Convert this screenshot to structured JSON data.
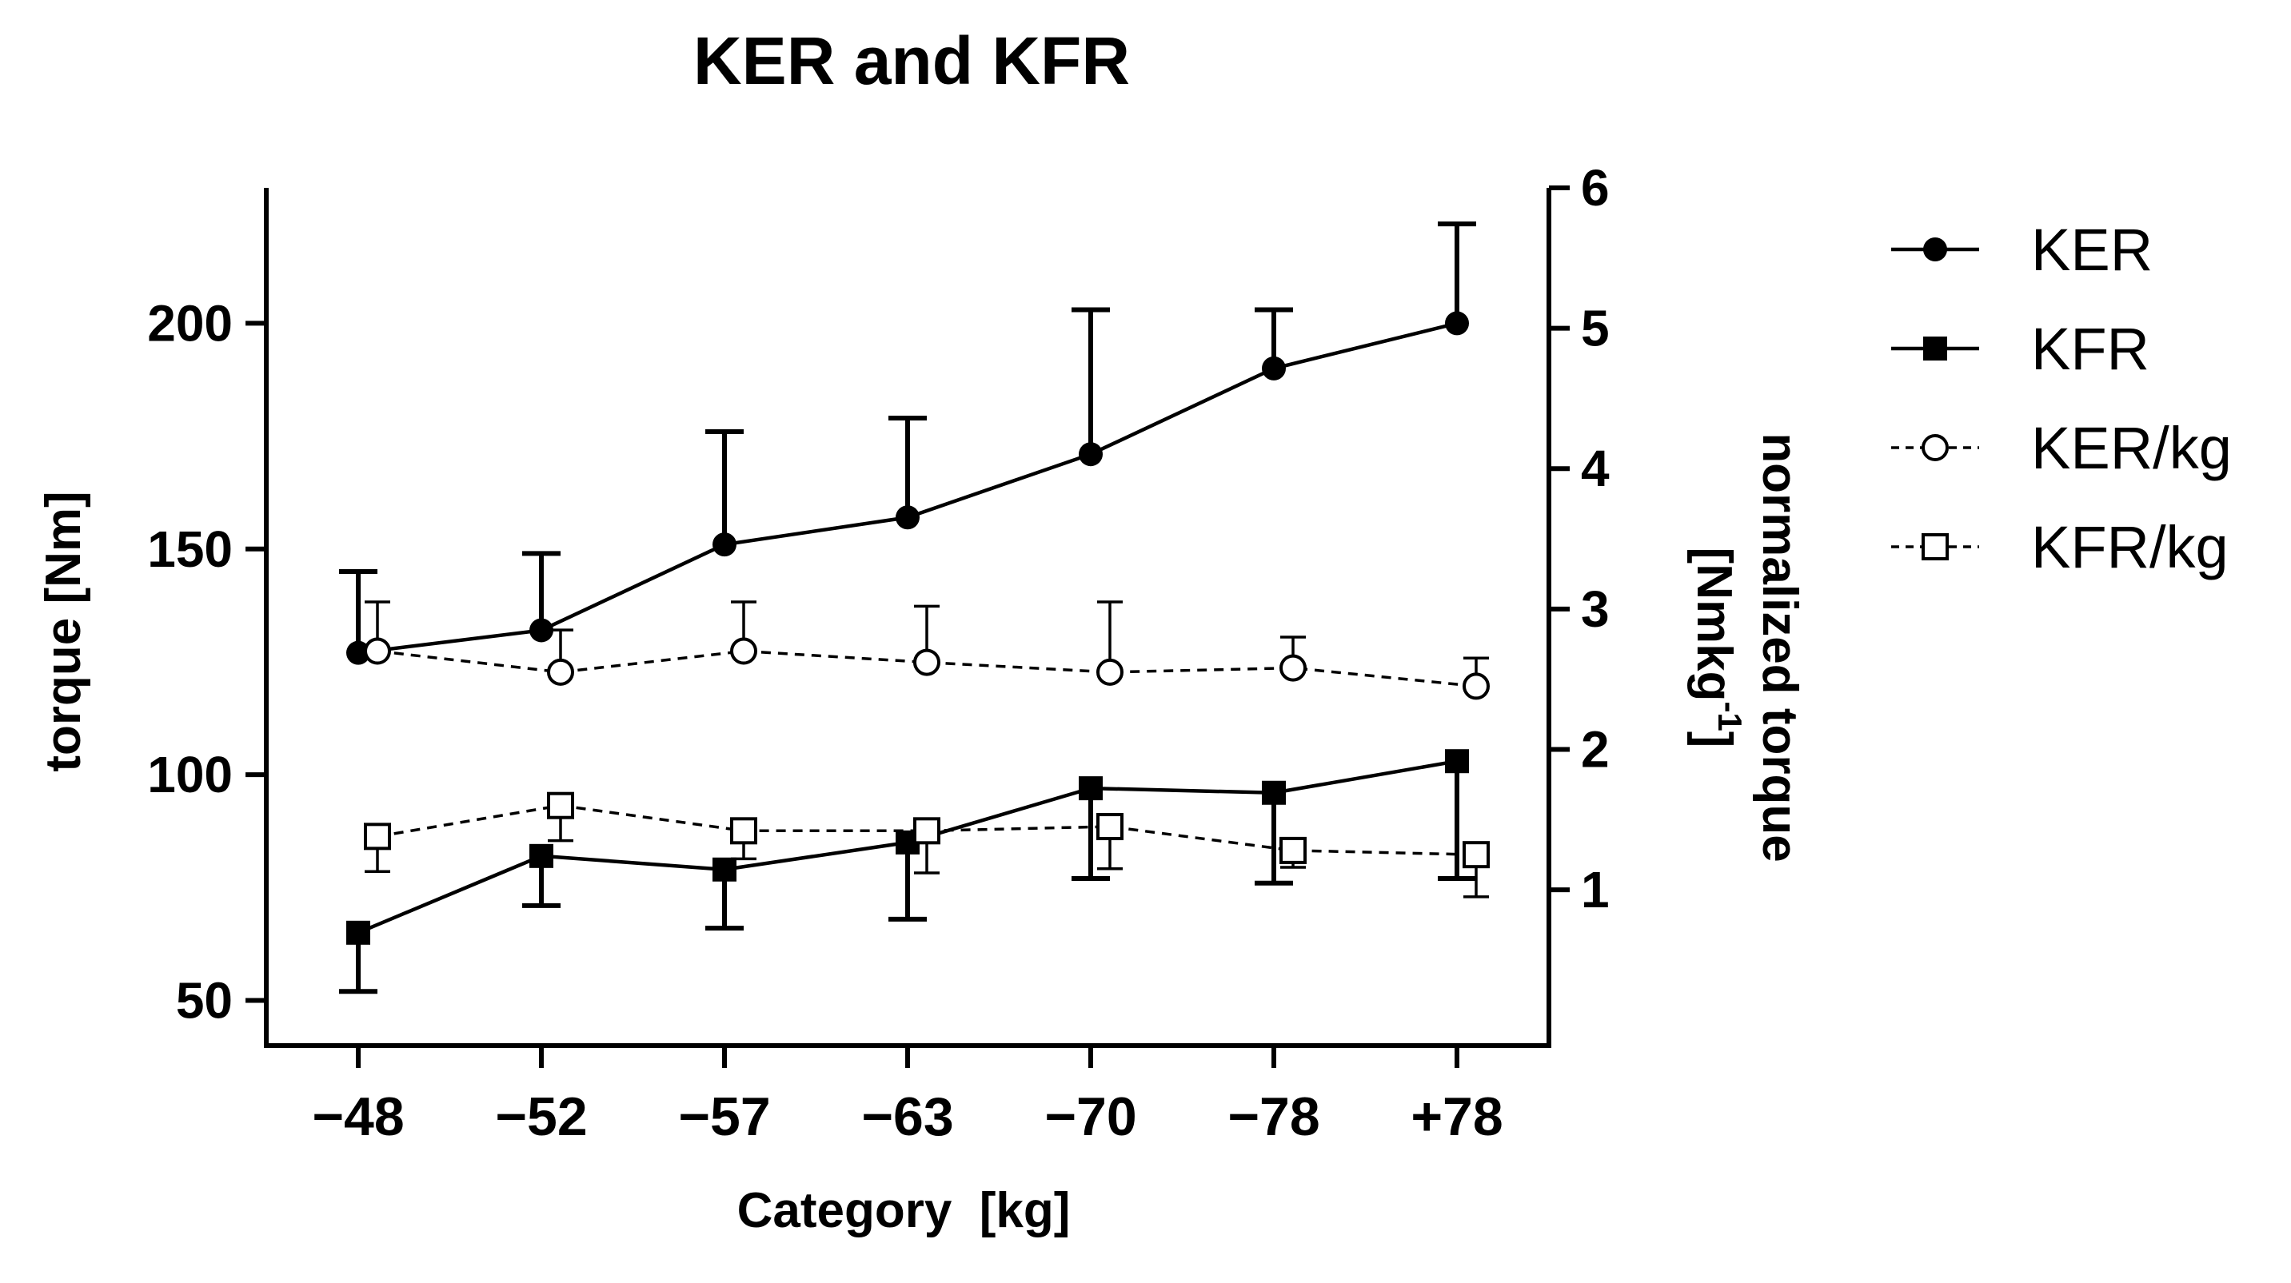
{
  "chart_data": {
    "type": "line",
    "title": "KER and KFR",
    "xlabel": "Category  [kg]",
    "ylabel": "torque [Nm]",
    "y2label_line1": "normalized torque",
    "y2label_line2": "[Nmkg",
    "y2label_sup": "-1",
    "y2label_close": "]",
    "categories": [
      "−48",
      "−52",
      "−57",
      "−63",
      "−70",
      "−78",
      "+78"
    ],
    "y_ticks": [
      "50",
      "100",
      "150",
      "200"
    ],
    "y_tick_values": [
      50,
      100,
      150,
      200
    ],
    "y2_ticks": [
      "1",
      "2",
      "3",
      "4",
      "5",
      "6"
    ],
    "y2_tick_values": [
      1,
      2,
      3,
      4,
      5,
      6
    ],
    "ylim": [
      40,
      230
    ],
    "y2lim": [
      -0.11,
      6.0
    ],
    "legend_position": "right",
    "series": [
      {
        "name": "KER",
        "axis": "left",
        "marker": "filled-circle",
        "line": "solid",
        "values": [
          127,
          132,
          151,
          157,
          171,
          190,
          200
        ],
        "errors": [
          18,
          17,
          25,
          22,
          32,
          13,
          22
        ]
      },
      {
        "name": "KFR",
        "axis": "left",
        "marker": "filled-square",
        "line": "solid",
        "values": [
          65,
          82,
          79,
          85,
          97,
          96,
          103
        ],
        "errors": [
          13,
          11,
          13,
          17,
          20,
          20,
          26
        ]
      },
      {
        "name": "KER/kg",
        "axis": "right",
        "marker": "open-circle",
        "line": "dashed",
        "values": [
          2.7,
          2.55,
          2.7,
          2.62,
          2.55,
          2.58,
          2.45
        ],
        "errors": [
          0.35,
          0.3,
          0.35,
          0.4,
          0.5,
          0.22,
          0.2
        ]
      },
      {
        "name": "KFR/kg",
        "axis": "right",
        "marker": "open-square",
        "line": "dashed",
        "values": [
          1.38,
          1.6,
          1.42,
          1.42,
          1.45,
          1.28,
          1.25
        ],
        "errors": [
          0.25,
          0.25,
          0.2,
          0.3,
          0.3,
          0.12,
          0.3
        ]
      }
    ]
  }
}
